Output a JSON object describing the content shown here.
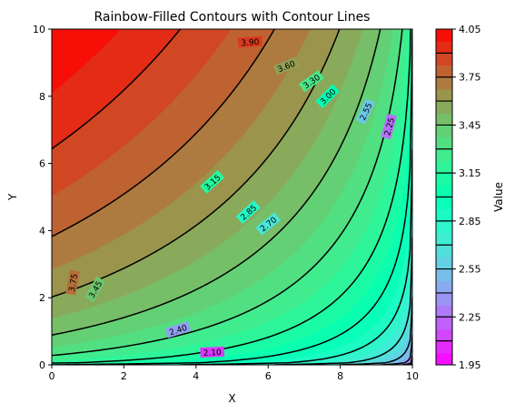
{
  "chart_data": {
    "type": "contour",
    "title": "Rainbow-Filled Contours with Contour Lines",
    "xlabel": "X",
    "ylabel": "Y",
    "xlim": [
      0,
      10
    ],
    "ylim": [
      0,
      10
    ],
    "x_ticks": [
      "0",
      "2",
      "4",
      "6",
      "8",
      "10"
    ],
    "y_ticks": [
      "0",
      "2",
      "4",
      "6",
      "8",
      "10"
    ],
    "colormap": "rainbow",
    "colorbar": {
      "label": "Value",
      "range": [
        1.95,
        4.05
      ],
      "tick_labels": [
        "1.95",
        "2.25",
        "2.55",
        "2.85",
        "3.15",
        "3.45",
        "3.75",
        "4.05"
      ]
    },
    "contour_levels": [
      2.1,
      2.25,
      2.4,
      2.55,
      2.7,
      2.85,
      3.0,
      3.15,
      3.3,
      3.45,
      3.6,
      3.75,
      3.9
    ],
    "contour_labels": [
      "3.90",
      "3.60",
      "3.30",
      "3.00",
      "2.55",
      "2.25",
      "3.15",
      "2.85",
      "2.70",
      "3.75",
      "3.45",
      "2.40",
      "2.10"
    ],
    "line_color": "#000000",
    "grid": false
  }
}
